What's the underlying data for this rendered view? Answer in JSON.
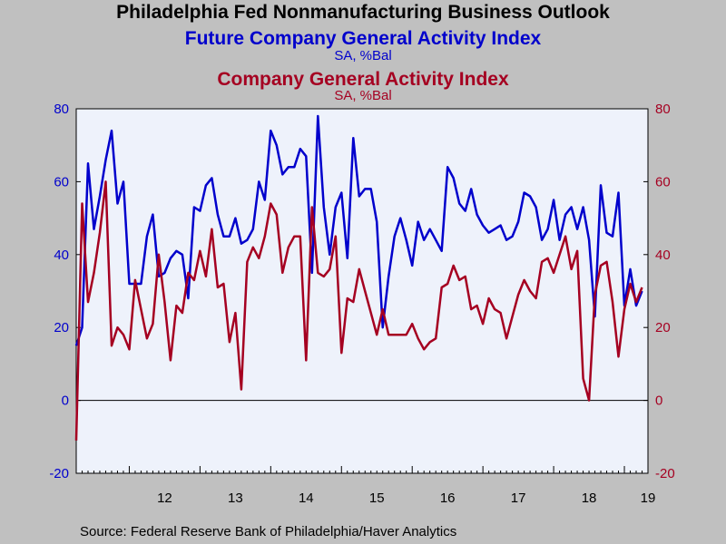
{
  "title": "Philadelphia Fed Nonmanufacturing Business Outlook",
  "series1_title": "Future Company General Activity Index",
  "series1_subtitle": "SA, %Bal",
  "series2_title": "Company General Activity Index",
  "series2_subtitle": "SA, %Bal",
  "source": "Source:  Federal Reserve Bank of Philadelphia/Haver Analytics",
  "colors": {
    "plot_bg": "#eef2fb",
    "page_bg": "#c0c0c0",
    "series1": "#0000cc",
    "series2": "#a50021"
  },
  "chart_data": {
    "type": "line",
    "x_start": "2011-04",
    "x_end": "2019-05",
    "x_label_years": [
      "12",
      "13",
      "14",
      "15",
      "16",
      "17",
      "18",
      "19"
    ],
    "ylim": [
      -20,
      80
    ],
    "y_ticks": [
      -20,
      0,
      20,
      40,
      60,
      80
    ],
    "y_tick_labels": [
      "-20",
      "0",
      "20",
      "40",
      "60",
      "80"
    ],
    "zero_line": true,
    "dual_axis": true,
    "series": [
      {
        "name": "Future Company General Activity Index",
        "axis": "left",
        "values": [
          15,
          20,
          65,
          47,
          56,
          66,
          74,
          54,
          60,
          32,
          32,
          32,
          45,
          51,
          34,
          35,
          39,
          41,
          40,
          28,
          53,
          52,
          59,
          61,
          51,
          45,
          45,
          50,
          43,
          44,
          47,
          60,
          55,
          74,
          70,
          62,
          64,
          64,
          69,
          67,
          35,
          78,
          53,
          40,
          53,
          57,
          39,
          72,
          56,
          58,
          58,
          49,
          20,
          34,
          45,
          50,
          44,
          37,
          49,
          44,
          47,
          44,
          41,
          64,
          61,
          54,
          52,
          58,
          51,
          48,
          46,
          47,
          48,
          44,
          45,
          49,
          57,
          56,
          53,
          44,
          47,
          55,
          44,
          51,
          53,
          47,
          53,
          44,
          23,
          59,
          46,
          45,
          57,
          26,
          36,
          26,
          30
        ]
      },
      {
        "name": "Company General Activity Index",
        "axis": "right",
        "values": [
          -11,
          54,
          27,
          35,
          46,
          60,
          15,
          20,
          18,
          14,
          33,
          25,
          17,
          21,
          40,
          27,
          11,
          26,
          24,
          35,
          33,
          41,
          34,
          47,
          31,
          32,
          16,
          24,
          3,
          38,
          42,
          39,
          45,
          54,
          51,
          35,
          42,
          45,
          45,
          11,
          53,
          35,
          34,
          36,
          45,
          13,
          28,
          27,
          36,
          30,
          24,
          18,
          25,
          18,
          18,
          18,
          18,
          21,
          17,
          14,
          16,
          17,
          31,
          32,
          37,
          33,
          34,
          25,
          26,
          21,
          28,
          25,
          24,
          17,
          23,
          29,
          33,
          30,
          28,
          38,
          39,
          35,
          40,
          45,
          36,
          41,
          6,
          0,
          29,
          37,
          38,
          27,
          12,
          25,
          32,
          27,
          31
        ]
      }
    ]
  }
}
